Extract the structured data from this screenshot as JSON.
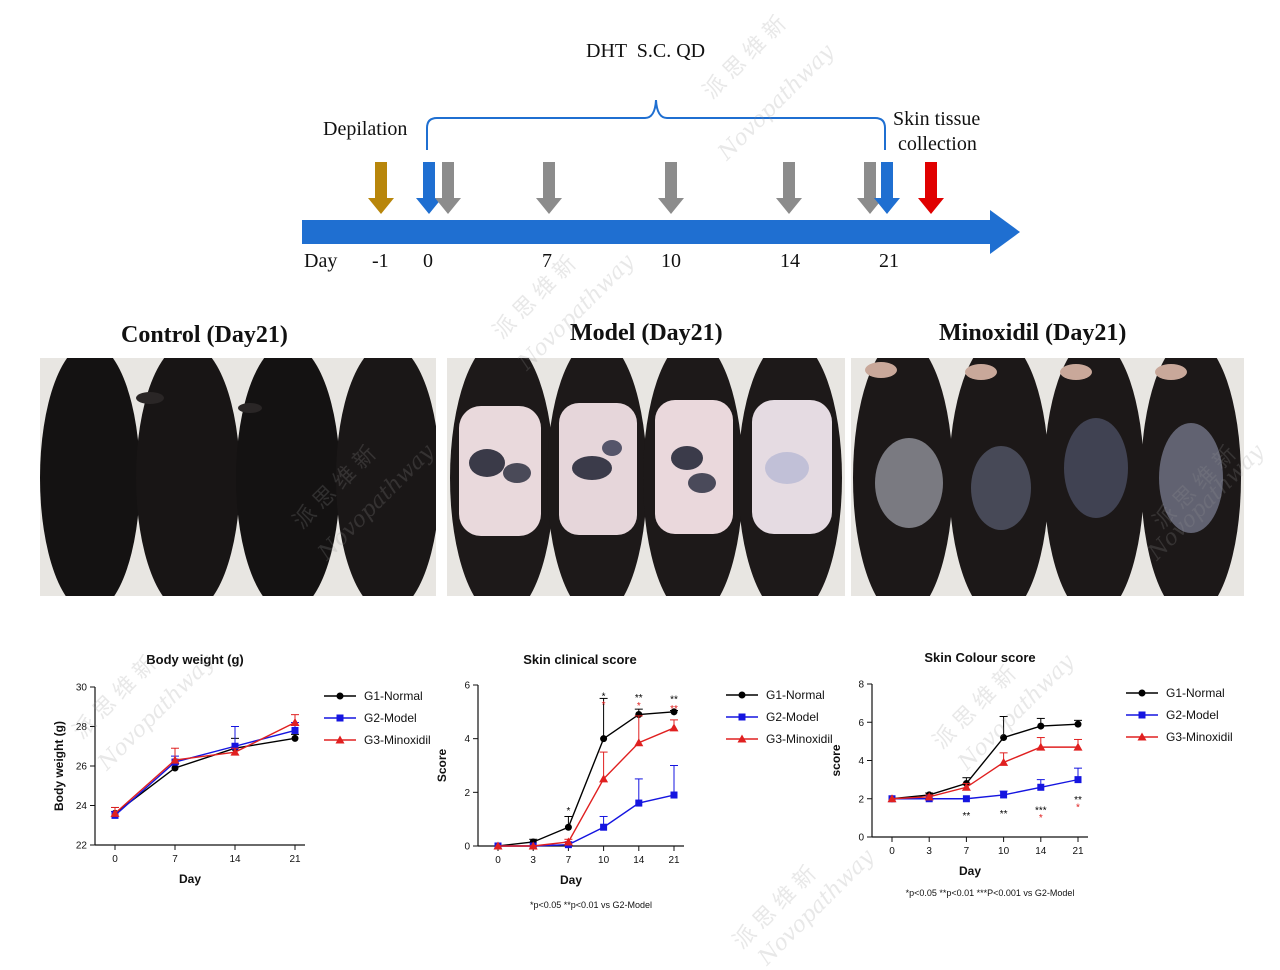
{
  "timeline": {
    "treatment_label": "DHT  S.C. QD",
    "depilation_label": "Depilation",
    "collection_label_line1": "Skin tissue",
    "collection_label_line2": "collection",
    "day_label": "Day",
    "days": [
      "-1",
      "0",
      "7",
      "10",
      "14",
      "21"
    ],
    "colors": {
      "depilation": "#b8860b",
      "dosing_start": "#1f6fd1",
      "dosing": "#8c8c8c",
      "collection": "#e00000",
      "timeline_bar": "#1f6fd1"
    }
  },
  "photos": [
    {
      "title": "Control (Day21)",
      "style": "control"
    },
    {
      "title": "Model (Day21)",
      "style": "model"
    },
    {
      "title": "Minoxidil  (Day21)",
      "style": "minoxidil"
    }
  ],
  "watermark": {
    "cn": "派 思 维 新",
    "en": "Novopathway"
  },
  "legend": [
    "G1-Normal",
    "G2-Model",
    "G3-Minoxidil"
  ],
  "series_colors": {
    "G1-Normal": "#000000",
    "G2-Model": "#1515e0",
    "G3-Minoxidil": "#e02020"
  },
  "chart_data": [
    {
      "type": "line",
      "title": "Body weight (g)",
      "xlabel": "Day",
      "ylabel": "Body weight (g)",
      "x": [
        0,
        7,
        14,
        21
      ],
      "xticks": [
        "0",
        "7",
        "14",
        "21"
      ],
      "ylim": [
        22,
        30
      ],
      "yticks": [
        22,
        24,
        26,
        28,
        30
      ],
      "series": [
        {
          "name": "G1-Normal",
          "values": [
            23.6,
            25.9,
            26.9,
            27.4
          ],
          "err": [
            0.3,
            0.2,
            0.5,
            0.2
          ]
        },
        {
          "name": "G2-Model",
          "values": [
            23.5,
            26.2,
            27.0,
            27.8
          ],
          "err": [
            0.2,
            0.3,
            1.0,
            0.4
          ]
        },
        {
          "name": "G3-Minoxidil",
          "values": [
            23.6,
            26.3,
            26.7,
            28.2
          ],
          "err": [
            0.3,
            0.6,
            0.2,
            0.4
          ]
        }
      ],
      "annotations": [],
      "footnote": ""
    },
    {
      "type": "line",
      "title": "Skin clinical score",
      "xlabel": "Day",
      "ylabel": "Score",
      "x": [
        0,
        3,
        7,
        10,
        14,
        21
      ],
      "xticks": [
        "0",
        "3",
        "7",
        "10",
        "14",
        "21"
      ],
      "ylim": [
        0,
        6
      ],
      "yticks": [
        0,
        2,
        4,
        6
      ],
      "series": [
        {
          "name": "G1-Normal",
          "values": [
            0,
            0.15,
            0.7,
            4.0,
            4.9,
            5.0
          ],
          "err": [
            0,
            0.1,
            0.4,
            1.5,
            0.2,
            0.05
          ]
        },
        {
          "name": "G2-Model",
          "values": [
            0,
            0,
            0.05,
            0.7,
            1.6,
            1.9
          ],
          "err": [
            0,
            0,
            0.1,
            0.4,
            0.9,
            1.1
          ]
        },
        {
          "name": "G3-Minoxidil",
          "values": [
            0,
            0,
            0.15,
            2.5,
            3.85,
            4.4
          ],
          "err": [
            0,
            0,
            0.1,
            1.0,
            1.0,
            0.3
          ]
        }
      ],
      "annotations": [
        {
          "x": 7,
          "y": 1.35,
          "text": "*",
          "color": "#000000"
        },
        {
          "x": 10,
          "y": 5.6,
          "text": "*",
          "color": "#000000"
        },
        {
          "x": 10,
          "y": 5.3,
          "text": "*",
          "color": "#e02020"
        },
        {
          "x": 14,
          "y": 5.55,
          "text": "**",
          "color": "#000000"
        },
        {
          "x": 14,
          "y": 5.25,
          "text": "*",
          "color": "#e02020"
        },
        {
          "x": 21,
          "y": 5.5,
          "text": "**",
          "color": "#000000"
        },
        {
          "x": 21,
          "y": 5.15,
          "text": "**",
          "color": "#e02020"
        }
      ],
      "footnote": "*p<0.05 **p<0.01 vs G2-Model"
    },
    {
      "type": "line",
      "title": "Skin Colour score",
      "xlabel": "Day",
      "ylabel": "score",
      "x": [
        0,
        3,
        7,
        10,
        14,
        21
      ],
      "xticks": [
        "0",
        "3",
        "7",
        "10",
        "14",
        "21"
      ],
      "ylim": [
        0,
        8
      ],
      "yticks": [
        0,
        2,
        4,
        6,
        8
      ],
      "series": [
        {
          "name": "G1-Normal",
          "values": [
            2,
            2.2,
            2.8,
            5.2,
            5.8,
            5.9
          ],
          "err": [
            0,
            0.1,
            0.3,
            1.1,
            0.4,
            0.2
          ]
        },
        {
          "name": "G2-Model",
          "values": [
            2,
            2,
            2,
            2.2,
            2.6,
            3.0
          ],
          "err": [
            0,
            0,
            0,
            0.2,
            0.4,
            0.6
          ]
        },
        {
          "name": "G3-Minoxidil",
          "values": [
            2,
            2.1,
            2.6,
            3.9,
            4.7,
            4.7
          ],
          "err": [
            0,
            0.1,
            0.2,
            0.5,
            0.5,
            0.4
          ]
        }
      ],
      "annotations": [
        {
          "x": 7,
          "y": 1.15,
          "text": "**",
          "color": "#000000"
        },
        {
          "x": 10,
          "y": 1.25,
          "text": "**",
          "color": "#000000"
        },
        {
          "x": 14,
          "y": 1.45,
          "text": "***",
          "color": "#000000"
        },
        {
          "x": 14,
          "y": 1.05,
          "text": "*",
          "color": "#e02020"
        },
        {
          "x": 21,
          "y": 2.0,
          "text": "**",
          "color": "#000000"
        },
        {
          "x": 21,
          "y": 1.6,
          "text": "*",
          "color": "#e02020"
        }
      ],
      "footnote": "*p<0.05 **p<0.01 ***P<0.001 vs G2-Model"
    }
  ]
}
